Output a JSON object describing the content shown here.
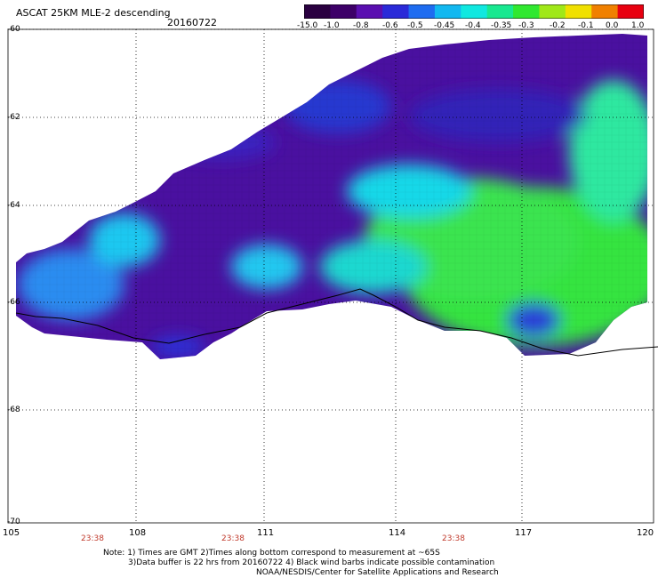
{
  "header": {
    "title": "ASCAT 25KM MLE-2 descending",
    "date": "20160722"
  },
  "colorbar": {
    "labels": [
      "-15.0",
      "-1.0",
      "-0.8",
      "-0.6",
      "-0.5",
      "-0.45",
      "-0.4",
      "-0.35",
      "-0.3",
      "-0.2",
      "-0.1",
      "0.0",
      "1.0"
    ],
    "colors": [
      "#2a0040",
      "#3d0068",
      "#5a0fb0",
      "#2a2ad8",
      "#1e6cf0",
      "#12b8f0",
      "#10e8e0",
      "#18e890",
      "#30e830",
      "#a0e818",
      "#f0e000",
      "#f08000",
      "#e80010"
    ]
  },
  "axes": {
    "lat_labels": [
      "-60",
      "-62",
      "-64",
      "-66",
      "-68",
      "-70"
    ],
    "lon_labels": [
      "105",
      "108",
      "111",
      "114",
      "117",
      "120"
    ],
    "time_labels": [
      "23:38",
      "23:38",
      "23:38"
    ]
  },
  "notes": {
    "line1": "Note: 1) Times are GMT 2)Times along bottom correspond to measurement at ~65S",
    "line2": "3)Data buffer is 22 hrs from 20160722 4) Black wind barbs indicate possible contamination",
    "line3": "NOAA/NESDIS/Center for Satellite Applications and Research"
  }
}
